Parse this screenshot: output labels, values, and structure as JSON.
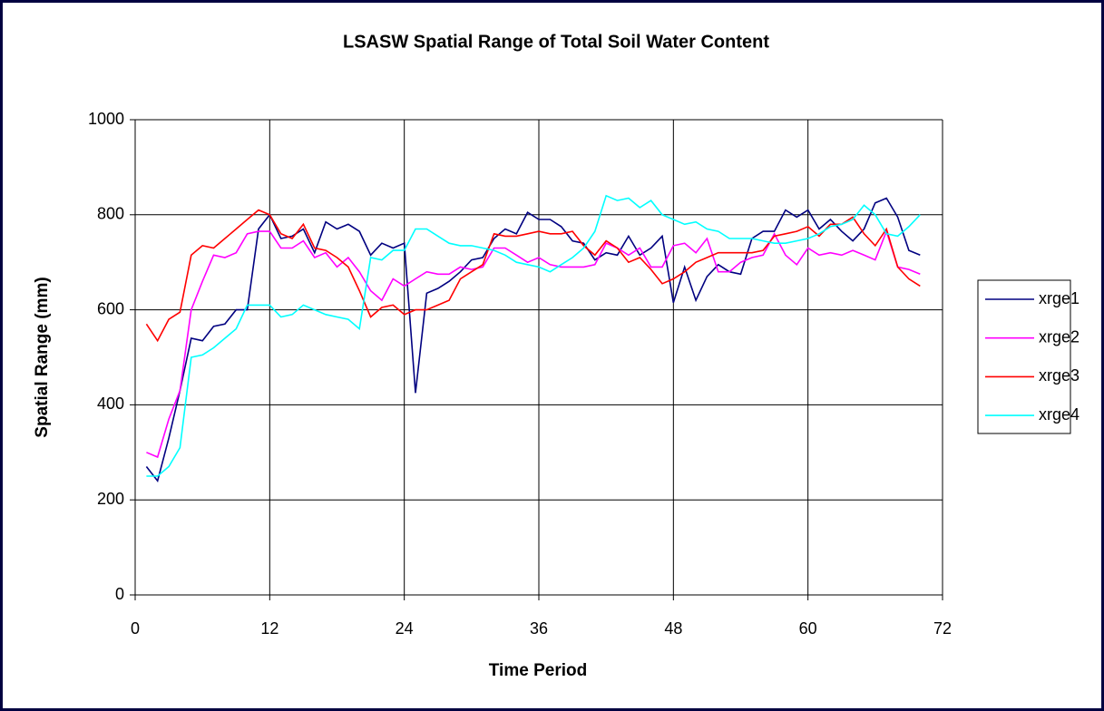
{
  "chart_data": {
    "type": "line",
    "title": "LSASW Spatial Range of Total Soil Water Content",
    "x_label": "Time Period",
    "y_label": "Spatial Range (mm)",
    "x": [
      1,
      2,
      3,
      4,
      5,
      6,
      7,
      8,
      9,
      10,
      11,
      12,
      13,
      14,
      15,
      16,
      17,
      18,
      19,
      20,
      21,
      22,
      23,
      24,
      25,
      26,
      27,
      28,
      29,
      30,
      31,
      32,
      33,
      34,
      35,
      36,
      37,
      38,
      39,
      40,
      41,
      42,
      43,
      44,
      45,
      46,
      47,
      48,
      49,
      50,
      51,
      52,
      53,
      54,
      55,
      56,
      57,
      58,
      59,
      60,
      61,
      62,
      63,
      64,
      65,
      66,
      67,
      68,
      69,
      70
    ],
    "series": [
      {
        "name": "xrge1",
        "color": "#000080",
        "values": [
          270,
          240,
          330,
          430,
          540,
          535,
          565,
          570,
          600,
          600,
          770,
          800,
          750,
          755,
          770,
          720,
          785,
          770,
          780,
          765,
          715,
          740,
          730,
          740,
          425,
          635,
          645,
          660,
          680,
          705,
          710,
          750,
          770,
          760,
          805,
          790,
          790,
          775,
          745,
          740,
          705,
          720,
          715,
          755,
          715,
          730,
          755,
          615,
          690,
          620,
          670,
          695,
          680,
          675,
          750,
          765,
          765,
          810,
          795,
          810,
          770,
          790,
          765,
          745,
          770,
          825,
          835,
          795,
          725,
          715
        ]
      },
      {
        "name": "xrge2",
        "color": "#ff00ff",
        "values": [
          300,
          290,
          370,
          430,
          600,
          660,
          715,
          710,
          720,
          760,
          765,
          765,
          730,
          730,
          745,
          710,
          720,
          690,
          710,
          680,
          640,
          620,
          665,
          650,
          665,
          680,
          675,
          675,
          690,
          685,
          690,
          730,
          730,
          715,
          700,
          710,
          695,
          690,
          690,
          690,
          695,
          740,
          730,
          715,
          730,
          690,
          690,
          735,
          740,
          720,
          750,
          680,
          680,
          700,
          710,
          715,
          760,
          715,
          695,
          730,
          715,
          720,
          715,
          725,
          715,
          705,
          765,
          690,
          685,
          675
        ]
      },
      {
        "name": "xrge3",
        "color": "#ff0000",
        "values": [
          570,
          535,
          580,
          595,
          715,
          735,
          730,
          750,
          770,
          790,
          810,
          800,
          760,
          750,
          780,
          730,
          725,
          710,
          690,
          640,
          585,
          605,
          610,
          590,
          600,
          600,
          610,
          620,
          665,
          680,
          695,
          760,
          755,
          755,
          760,
          765,
          760,
          760,
          765,
          735,
          715,
          745,
          730,
          700,
          710,
          685,
          655,
          665,
          680,
          700,
          710,
          720,
          720,
          720,
          720,
          725,
          755,
          760,
          765,
          775,
          755,
          780,
          780,
          795,
          760,
          735,
          770,
          690,
          665,
          650
        ]
      },
      {
        "name": "xrge4",
        "color": "#00ffff",
        "values": [
          250,
          250,
          270,
          310,
          500,
          505,
          520,
          540,
          560,
          610,
          610,
          610,
          585,
          590,
          610,
          600,
          590,
          585,
          580,
          560,
          710,
          705,
          725,
          725,
          770,
          770,
          755,
          740,
          735,
          735,
          730,
          725,
          715,
          700,
          695,
          690,
          680,
          695,
          710,
          730,
          765,
          840,
          830,
          835,
          815,
          830,
          800,
          790,
          780,
          785,
          770,
          765,
          750,
          750,
          750,
          745,
          740,
          740,
          745,
          750,
          760,
          775,
          780,
          790,
          820,
          800,
          760,
          755,
          775,
          800
        ]
      }
    ],
    "xlim": [
      0,
      72
    ],
    "xticks": [
      0,
      12,
      24,
      36,
      48,
      60,
      72
    ],
    "ylim": [
      0,
      1000
    ],
    "yticks": [
      0,
      200,
      400,
      600,
      800,
      1000
    ],
    "grid": true,
    "legend": "right"
  }
}
